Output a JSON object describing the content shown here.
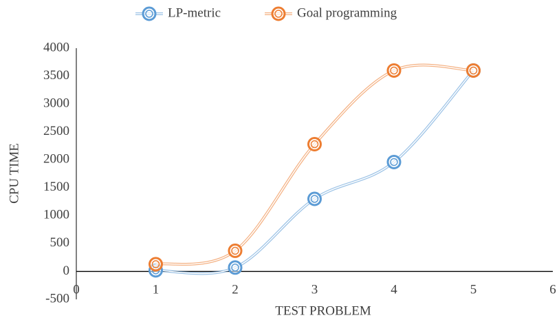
{
  "chart_data": {
    "type": "scatter",
    "xlabel": "TEST PROBLEM",
    "ylabel": "CPU TIME",
    "xlim": [
      0,
      6
    ],
    "xticks": [
      0,
      1,
      2,
      3,
      4,
      5,
      6
    ],
    "ylim": [
      -500,
      4000
    ],
    "yticks": [
      -500,
      0,
      500,
      1000,
      1500,
      2000,
      2500,
      3000,
      3500,
      4000
    ],
    "grid": false,
    "legend": "top",
    "smooth": true,
    "series": [
      {
        "name": "LP-metric",
        "color": "#5b9bd5",
        "x": [
          1,
          2,
          3,
          4,
          5
        ],
        "values": [
          20,
          70,
          1300,
          1960,
          3600
        ]
      },
      {
        "name": "Goal programming",
        "color": "#ed7d31",
        "x": [
          1,
          2,
          3,
          4,
          5
        ],
        "values": [
          130,
          370,
          2280,
          3600,
          3600
        ]
      }
    ]
  }
}
